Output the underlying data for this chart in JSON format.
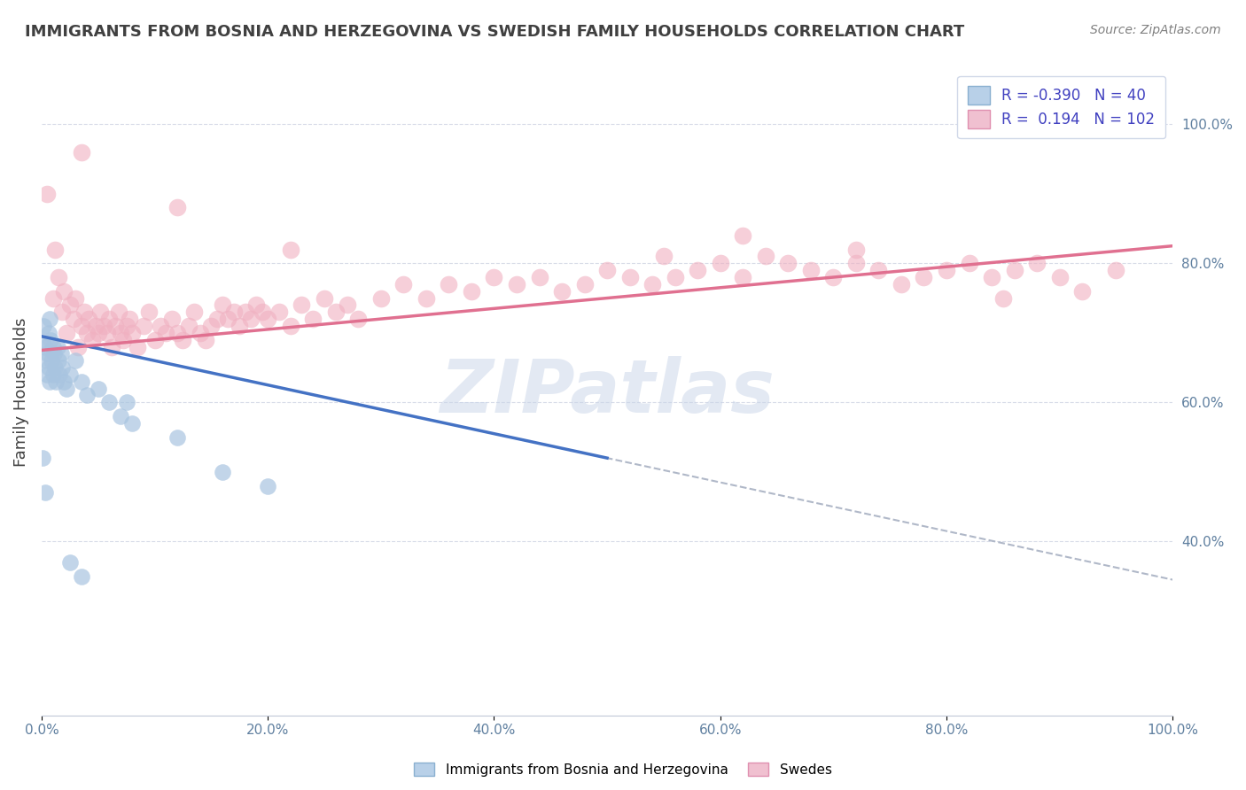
{
  "title": "IMMIGRANTS FROM BOSNIA AND HERZEGOVINA VS SWEDISH FAMILY HOUSEHOLDS CORRELATION CHART",
  "source": "Source: ZipAtlas.com",
  "xlabel": "",
  "ylabel": "Family Households",
  "watermark": "ZIPatlas",
  "xlim": [
    0.0,
    1.0
  ],
  "ylim": [
    0.15,
    1.08
  ],
  "legend": {
    "blue_label": "Immigrants from Bosnia and Herzegovina",
    "pink_label": "Swedes",
    "blue_R": "-0.390",
    "blue_N": "40",
    "pink_R": "0.194",
    "pink_N": "102"
  },
  "blue_scatter": [
    [
      0.001,
      0.685
    ],
    [
      0.002,
      0.71
    ],
    [
      0.003,
      0.68
    ],
    [
      0.004,
      0.66
    ],
    [
      0.005,
      0.64
    ],
    [
      0.005,
      0.67
    ],
    [
      0.006,
      0.65
    ],
    [
      0.006,
      0.7
    ],
    [
      0.007,
      0.63
    ],
    [
      0.007,
      0.72
    ],
    [
      0.008,
      0.69
    ],
    [
      0.009,
      0.66
    ],
    [
      0.01,
      0.68
    ],
    [
      0.01,
      0.64
    ],
    [
      0.011,
      0.67
    ],
    [
      0.012,
      0.65
    ],
    [
      0.013,
      0.63
    ],
    [
      0.014,
      0.68
    ],
    [
      0.015,
      0.66
    ],
    [
      0.016,
      0.64
    ],
    [
      0.017,
      0.67
    ],
    [
      0.018,
      0.65
    ],
    [
      0.02,
      0.63
    ],
    [
      0.022,
      0.62
    ],
    [
      0.025,
      0.64
    ],
    [
      0.03,
      0.66
    ],
    [
      0.035,
      0.63
    ],
    [
      0.04,
      0.61
    ],
    [
      0.05,
      0.62
    ],
    [
      0.06,
      0.6
    ],
    [
      0.07,
      0.58
    ],
    [
      0.075,
      0.6
    ],
    [
      0.08,
      0.57
    ],
    [
      0.12,
      0.55
    ],
    [
      0.16,
      0.5
    ],
    [
      0.2,
      0.48
    ],
    [
      0.001,
      0.52
    ],
    [
      0.003,
      0.47
    ],
    [
      0.025,
      0.37
    ],
    [
      0.035,
      0.35
    ]
  ],
  "pink_scatter": [
    [
      0.005,
      0.9
    ],
    [
      0.01,
      0.75
    ],
    [
      0.012,
      0.82
    ],
    [
      0.015,
      0.78
    ],
    [
      0.018,
      0.73
    ],
    [
      0.02,
      0.76
    ],
    [
      0.022,
      0.7
    ],
    [
      0.025,
      0.74
    ],
    [
      0.028,
      0.72
    ],
    [
      0.03,
      0.75
    ],
    [
      0.032,
      0.68
    ],
    [
      0.035,
      0.71
    ],
    [
      0.038,
      0.73
    ],
    [
      0.04,
      0.7
    ],
    [
      0.042,
      0.72
    ],
    [
      0.045,
      0.69
    ],
    [
      0.048,
      0.71
    ],
    [
      0.05,
      0.7
    ],
    [
      0.052,
      0.73
    ],
    [
      0.055,
      0.71
    ],
    [
      0.058,
      0.7
    ],
    [
      0.06,
      0.72
    ],
    [
      0.062,
      0.68
    ],
    [
      0.065,
      0.71
    ],
    [
      0.068,
      0.73
    ],
    [
      0.07,
      0.7
    ],
    [
      0.072,
      0.69
    ],
    [
      0.075,
      0.71
    ],
    [
      0.078,
      0.72
    ],
    [
      0.08,
      0.7
    ],
    [
      0.085,
      0.68
    ],
    [
      0.09,
      0.71
    ],
    [
      0.095,
      0.73
    ],
    [
      0.1,
      0.69
    ],
    [
      0.105,
      0.71
    ],
    [
      0.11,
      0.7
    ],
    [
      0.115,
      0.72
    ],
    [
      0.12,
      0.7
    ],
    [
      0.125,
      0.69
    ],
    [
      0.13,
      0.71
    ],
    [
      0.135,
      0.73
    ],
    [
      0.14,
      0.7
    ],
    [
      0.145,
      0.69
    ],
    [
      0.15,
      0.71
    ],
    [
      0.155,
      0.72
    ],
    [
      0.16,
      0.74
    ],
    [
      0.165,
      0.72
    ],
    [
      0.17,
      0.73
    ],
    [
      0.175,
      0.71
    ],
    [
      0.18,
      0.73
    ],
    [
      0.185,
      0.72
    ],
    [
      0.19,
      0.74
    ],
    [
      0.195,
      0.73
    ],
    [
      0.2,
      0.72
    ],
    [
      0.21,
      0.73
    ],
    [
      0.22,
      0.71
    ],
    [
      0.23,
      0.74
    ],
    [
      0.24,
      0.72
    ],
    [
      0.25,
      0.75
    ],
    [
      0.26,
      0.73
    ],
    [
      0.27,
      0.74
    ],
    [
      0.28,
      0.72
    ],
    [
      0.3,
      0.75
    ],
    [
      0.32,
      0.77
    ],
    [
      0.34,
      0.75
    ],
    [
      0.36,
      0.77
    ],
    [
      0.38,
      0.76
    ],
    [
      0.4,
      0.78
    ],
    [
      0.42,
      0.77
    ],
    [
      0.44,
      0.78
    ],
    [
      0.46,
      0.76
    ],
    [
      0.48,
      0.77
    ],
    [
      0.5,
      0.79
    ],
    [
      0.52,
      0.78
    ],
    [
      0.54,
      0.77
    ],
    [
      0.56,
      0.78
    ],
    [
      0.58,
      0.79
    ],
    [
      0.6,
      0.8
    ],
    [
      0.62,
      0.78
    ],
    [
      0.64,
      0.81
    ],
    [
      0.66,
      0.8
    ],
    [
      0.68,
      0.79
    ],
    [
      0.7,
      0.78
    ],
    [
      0.72,
      0.8
    ],
    [
      0.74,
      0.79
    ],
    [
      0.76,
      0.77
    ],
    [
      0.78,
      0.78
    ],
    [
      0.8,
      0.79
    ],
    [
      0.82,
      0.8
    ],
    [
      0.84,
      0.78
    ],
    [
      0.86,
      0.79
    ],
    [
      0.88,
      0.8
    ],
    [
      0.9,
      0.78
    ],
    [
      0.92,
      0.76
    ],
    [
      0.95,
      0.79
    ],
    [
      0.035,
      0.96
    ],
    [
      0.12,
      0.88
    ],
    [
      0.22,
      0.82
    ],
    [
      0.55,
      0.81
    ],
    [
      0.62,
      0.84
    ],
    [
      0.72,
      0.82
    ],
    [
      0.85,
      0.75
    ]
  ],
  "blue_line": {
    "x": [
      0.0,
      0.5
    ],
    "y": [
      0.695,
      0.52
    ]
  },
  "pink_line": {
    "x": [
      0.0,
      1.0
    ],
    "y": [
      0.675,
      0.825
    ]
  },
  "ytick_labels": [
    "40.0%",
    "60.0%",
    "80.0%",
    "100.0%"
  ],
  "ytick_values": [
    0.4,
    0.6,
    0.8,
    1.0
  ],
  "xtick_labels": [
    "0.0%",
    "20.0%",
    "40.0%",
    "60.0%",
    "80.0%",
    "100.0%"
  ],
  "xtick_values": [
    0.0,
    0.2,
    0.4,
    0.6,
    0.8,
    1.0
  ],
  "background_color": "#ffffff",
  "scatter_blue_color": "#a8c4e0",
  "scatter_pink_color": "#f0b0c0",
  "line_blue_color": "#4472c4",
  "line_pink_color": "#e07090",
  "dashed_line_color": "#b0b8c8",
  "title_color": "#404040",
  "source_color": "#808080",
  "watermark_color": "#c8d4e8",
  "grid_color": "#d8dce8"
}
